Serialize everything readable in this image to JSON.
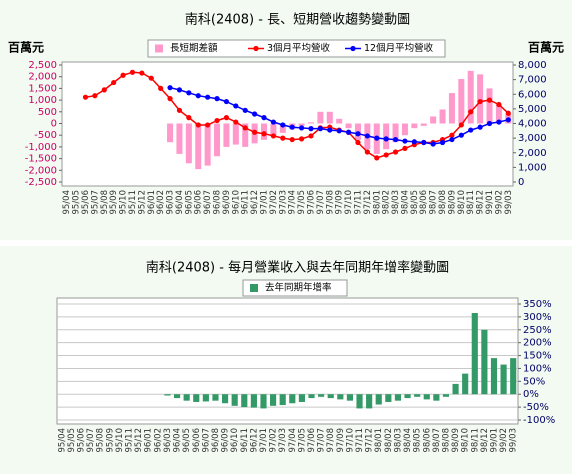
{
  "chart_data": [
    {
      "type": "combo",
      "title": "南科(2408) -  長、短期營收趨勢變動圖",
      "ylabel": "百萬元",
      "y2label": "百萬元",
      "categories": [
        "95/04",
        "95/05",
        "95/06",
        "95/07",
        "95/08",
        "95/09",
        "95/10",
        "95/11",
        "95/12",
        "96/01",
        "96/02",
        "96/03",
        "96/04",
        "96/05",
        "96/06",
        "96/07",
        "96/08",
        "96/09",
        "96/10",
        "96/11",
        "96/12",
        "97/01",
        "97/02",
        "97/03",
        "97/04",
        "97/05",
        "97/06",
        "97/07",
        "97/08",
        "97/09",
        "97/10",
        "97/11",
        "97/12",
        "98/01",
        "98/02",
        "98/03",
        "98/04",
        "98/05",
        "98/06",
        "98/07",
        "98/08",
        "98/09",
        "98/10",
        "98/11",
        "98/12",
        "99/01",
        "99/02",
        "99/03"
      ],
      "series": [
        {
          "name": "長短期差額",
          "kind": "bar",
          "color": "#ff99cc",
          "axis": "y",
          "values": [
            null,
            null,
            null,
            null,
            null,
            null,
            null,
            null,
            null,
            null,
            null,
            -800,
            -1300,
            -1700,
            -1950,
            -1800,
            -1400,
            -1000,
            -900,
            -1000,
            -850,
            -700,
            -550,
            -400,
            -250,
            -100,
            50,
            500,
            500,
            200,
            -200,
            -700,
            -1100,
            -1300,
            -1100,
            -800,
            -500,
            -200,
            -100,
            300,
            600,
            1300,
            1900,
            2250,
            2100,
            1500,
            800,
            400
          ]
        },
        {
          "name": "3個月平均營收",
          "kind": "line",
          "color": "#ff0000",
          "axis": "y2",
          "values": [
            null,
            null,
            5800,
            5900,
            6300,
            6800,
            7300,
            7500,
            7450,
            7100,
            6400,
            5700,
            4900,
            4400,
            3900,
            3900,
            4200,
            4400,
            4100,
            3700,
            3400,
            3300,
            3150,
            3000,
            2900,
            2950,
            3150,
            3700,
            3750,
            3550,
            3400,
            2700,
            2050,
            1650,
            1850,
            2050,
            2300,
            2550,
            2700,
            2700,
            2900,
            3200,
            3900,
            4800,
            5500,
            5600,
            5300,
            4700
          ]
        },
        {
          "name": "12個月平均營收",
          "kind": "line",
          "color": "#0000ff",
          "axis": "y2",
          "values": [
            null,
            null,
            null,
            null,
            null,
            null,
            null,
            null,
            null,
            null,
            null,
            6450,
            6300,
            6100,
            5900,
            5800,
            5700,
            5500,
            5200,
            4900,
            4650,
            4400,
            4100,
            3900,
            3750,
            3700,
            3650,
            3650,
            3550,
            3500,
            3400,
            3300,
            3150,
            3000,
            2950,
            2900,
            2800,
            2750,
            2700,
            2600,
            2700,
            2900,
            3200,
            3550,
            3750,
            4000,
            4100,
            4250
          ]
        }
      ],
      "ylim": [
        -2500,
        2500
      ],
      "yticks": [
        {
          "value": 2500,
          "label": "2,500"
        },
        {
          "value": 2000,
          "label": "2,000"
        },
        {
          "value": 1500,
          "label": "1,500"
        },
        {
          "value": 1000,
          "label": "1,000"
        },
        500,
        0,
        -500,
        {
          "value": -1000,
          "label": "-1,000"
        },
        {
          "value": -1500,
          "label": "-1,500"
        },
        {
          "value": -2000,
          "label": "-2,000"
        },
        {
          "value": -2500,
          "label": "-2,500"
        }
      ],
      "y2lim": [
        0,
        8000
      ],
      "y2ticks": [
        {
          "value": 8000,
          "label": "8,000"
        },
        {
          "value": 7000,
          "label": "7,000"
        },
        {
          "value": 6000,
          "label": "6,000"
        },
        {
          "value": 5000,
          "label": "5,000"
        },
        {
          "value": 4000,
          "label": "4,000"
        },
        {
          "value": 3000,
          "label": "3,000"
        },
        {
          "value": 2000,
          "label": "2,000"
        },
        {
          "value": 1000,
          "label": "1,000"
        },
        0
      ],
      "grid": false
    },
    {
      "type": "bar",
      "title": "南科(2408) -  每月營業收入與去年同期年增率變動圖",
      "categories": [
        "95/04",
        "95/05",
        "95/06",
        "95/07",
        "95/08",
        "95/09",
        "95/10",
        "95/11",
        "95/12",
        "96/01",
        "96/02",
        "96/03",
        "96/04",
        "96/05",
        "96/06",
        "96/07",
        "96/08",
        "96/09",
        "96/10",
        "96/11",
        "96/12",
        "97/01",
        "97/02",
        "97/03",
        "97/04",
        "97/05",
        "97/06",
        "97/07",
        "97/08",
        "97/09",
        "97/10",
        "97/11",
        "97/12",
        "98/01",
        "98/02",
        "98/03",
        "98/04",
        "98/05",
        "98/06",
        "98/07",
        "98/08",
        "98/09",
        "98/10",
        "98/11",
        "98/12",
        "99/01",
        "99/02",
        "99/03"
      ],
      "series": [
        {
          "name": "去年同期年增率",
          "kind": "bar",
          "color": "#339966",
          "axis": "y2",
          "values": [
            null,
            null,
            null,
            null,
            null,
            null,
            null,
            null,
            null,
            null,
            null,
            -5,
            -15,
            -25,
            -30,
            -28,
            -25,
            -35,
            -45,
            -50,
            -52,
            -55,
            -45,
            -42,
            -35,
            -30,
            -15,
            -10,
            -15,
            -20,
            -25,
            -55,
            -55,
            -40,
            -30,
            -25,
            -15,
            -10,
            -20,
            -25,
            -10,
            40,
            80,
            315,
            250,
            140,
            115,
            140
          ]
        }
      ],
      "y2lim": [
        -100,
        350
      ],
      "y2ticks": [
        {
          "value": 350,
          "label": "350%"
        },
        {
          "value": 300,
          "label": "300%"
        },
        {
          "value": 250,
          "label": "250%"
        },
        {
          "value": 200,
          "label": "200%"
        },
        {
          "value": 150,
          "label": "150%"
        },
        {
          "value": 100,
          "label": "100%"
        },
        {
          "value": 50,
          "label": "50%"
        },
        {
          "value": 0,
          "label": "0%"
        },
        {
          "value": -50,
          "label": "-50%"
        },
        {
          "value": -100,
          "label": "-100%"
        }
      ],
      "grid": true
    }
  ]
}
